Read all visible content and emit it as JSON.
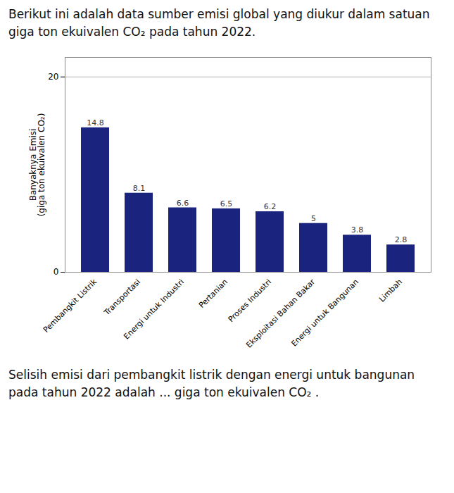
{
  "chart_data": {
    "type": "bar",
    "title": "Berikut ini adalah data sumber emisi global yang diukur dalam satuan giga ton ekuivalen CO₂ pada tahun 2022.",
    "categories": [
      "Pembangkit Listrik",
      "Transportasi",
      "Energi untuk Industri",
      "Pertanian",
      "Proses Industri",
      "Eksploitasi Bahan Bakar",
      "Energi untuk Bangunan",
      "Limbah"
    ],
    "values": [
      14.8,
      8.1,
      6.6,
      6.5,
      6.2,
      5.0,
      3.8,
      2.8
    ],
    "color": "#1a237e",
    "ylabel": "Banyaknya Emisi\n(giga ton ekuivalen CO₂)",
    "ylim": [
      0,
      22
    ],
    "yticks": [
      0,
      20
    ],
    "grid": true,
    "data_labels": true,
    "annotations": [
      "Selisih emisi dari pembangkit listrik dengan energi untuk bangunan pada tahun 2022 adalah ... giga ton ekuivalen CO₂ ."
    ]
  }
}
